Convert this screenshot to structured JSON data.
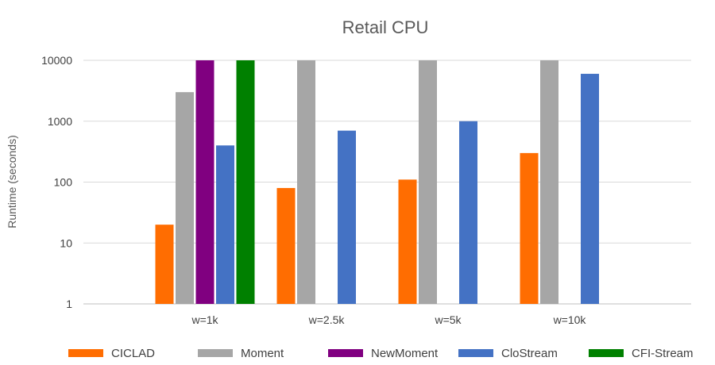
{
  "chart_data": {
    "type": "bar",
    "title": "Retail CPU",
    "ylabel": "Runtime (seconds)",
    "xlabel": "",
    "yscale": "log",
    "ylim": [
      1,
      10000
    ],
    "yticks": [
      1,
      10,
      100,
      1000,
      10000
    ],
    "ytick_labels": [
      "1",
      "10",
      "100",
      "1000",
      "10000"
    ],
    "grid": true,
    "legend_position": "bottom",
    "categories": [
      "w=1k",
      "w=2.5k",
      "w=5k",
      "w=10k"
    ],
    "series": [
      {
        "name": "CICLAD",
        "color": "#ff6d01",
        "values": [
          20,
          80,
          110,
          300
        ]
      },
      {
        "name": "Moment",
        "color": "#a6a6a6",
        "values": [
          3000,
          10000,
          10000,
          10000
        ]
      },
      {
        "name": "NewMoment",
        "color": "#800080",
        "values": [
          10000,
          null,
          null,
          null
        ]
      },
      {
        "name": "CloStream",
        "color": "#4472c4",
        "values": [
          400,
          700,
          1000,
          6000
        ]
      },
      {
        "name": "CFI-Stream",
        "color": "#008000",
        "values": [
          10000,
          null,
          null,
          null
        ]
      }
    ]
  }
}
